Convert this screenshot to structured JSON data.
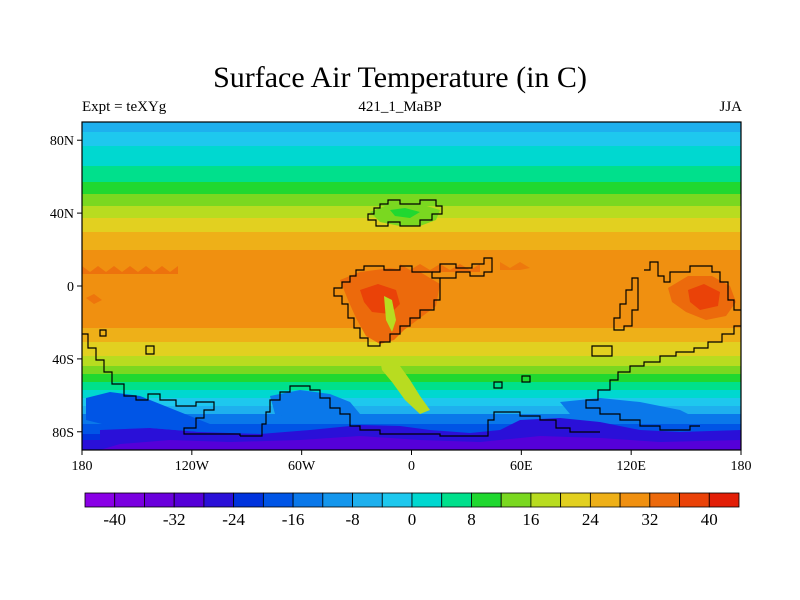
{
  "title": "Surface Air Temperature (in C)",
  "left_label": "Expt = teXYg",
  "center_label": "421_1_MaBP",
  "right_label": "JJA",
  "map": {
    "lon_range": [
      -180,
      180
    ],
    "lat_range": [
      -90,
      90
    ],
    "lat_ticks": [
      {
        "value": 80,
        "label": "80N"
      },
      {
        "value": 40,
        "label": "40N"
      },
      {
        "value": 0,
        "label": "0"
      },
      {
        "value": -40,
        "label": "40S"
      },
      {
        "value": -80,
        "label": "80S"
      }
    ],
    "lon_ticks": [
      {
        "value": -180,
        "label": "180"
      },
      {
        "value": -120,
        "label": "120W"
      },
      {
        "value": -60,
        "label": "60W"
      },
      {
        "value": 0,
        "label": "0"
      },
      {
        "value": 60,
        "label": "60E"
      },
      {
        "value": 120,
        "label": "120E"
      },
      {
        "value": 180,
        "label": "180"
      }
    ]
  },
  "colorbar": {
    "colors": [
      "#8a00e6",
      "#7a00e0",
      "#6a00dc",
      "#5500d8",
      "#2a10d8",
      "#0033dd",
      "#0055e6",
      "#0a78ea",
      "#1496ec",
      "#1eb0ee",
      "#1ec8ee",
      "#00d8d0",
      "#00e08c",
      "#20d830",
      "#7ad820",
      "#b8dc20",
      "#e2d020",
      "#eeb018",
      "#f09010",
      "#ec6a0c",
      "#ea4208",
      "#e21e06"
    ],
    "labels": [
      {
        "index": 1,
        "label": "-40"
      },
      {
        "index": 3,
        "label": "-32"
      },
      {
        "index": 5,
        "label": "-24"
      },
      {
        "index": 7,
        "label": "-16"
      },
      {
        "index": 9,
        "label": "-8"
      },
      {
        "index": 11,
        "label": "0"
      },
      {
        "index": 13,
        "label": "8"
      },
      {
        "index": 15,
        "label": "16"
      },
      {
        "index": 17,
        "label": "24"
      },
      {
        "index": 19,
        "label": "32"
      },
      {
        "index": 21,
        "label": "40"
      }
    ]
  }
}
